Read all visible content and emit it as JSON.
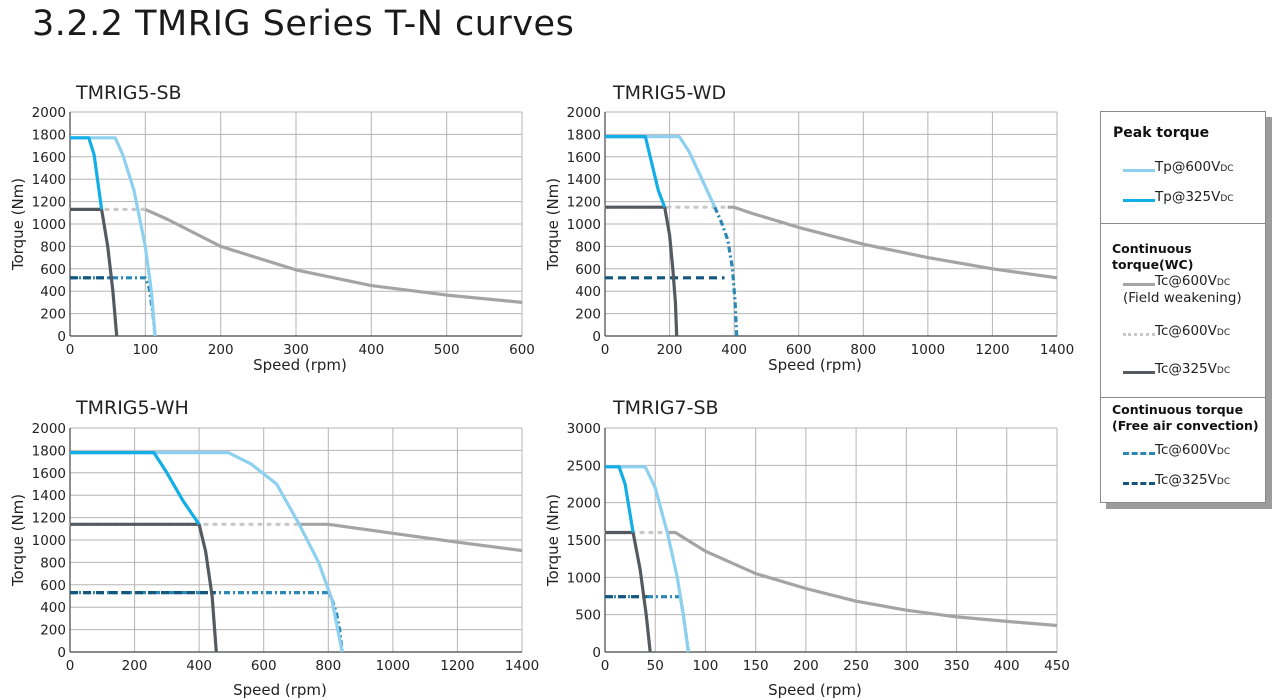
{
  "page": {
    "heading": "3.2.2  TMRIG Series T-N curves"
  },
  "colors": {
    "tp600": "#8dd0f0",
    "tp325": "#12aee6",
    "tc600_fw": "#a4a4a4",
    "tc600_dot": "#c8c8c8",
    "tc325": "#555a60",
    "tc600_air": "#2a88b4",
    "tc325_air": "#14577c"
  },
  "legend": {
    "peak_title": "Peak torque",
    "tp600": "Tp@600V",
    "tp325": "Tp@325V",
    "cont_wc_title": "Continuous torque(WC)",
    "tc600_fw": "Tc@600V",
    "field_weakening": "(Field weakening)",
    "tc600_dot": "Tc@600V",
    "tc325": "Tc@325V",
    "cont_air_title_1": "Continuous torque",
    "cont_air_title_2": "(Free air convection)",
    "tc600_air": "Tc@600V",
    "tc325_air": "Tc@325V",
    "dc": "DC"
  },
  "chart_data": [
    {
      "type": "line",
      "title": "TMRIG5-SB",
      "xlabel": "Speed (rpm)",
      "ylabel": "Torque (Nm)",
      "xlim": [
        0,
        600
      ],
      "ylim": [
        0,
        2000
      ],
      "xticks": [
        0,
        100,
        200,
        300,
        400,
        500,
        600
      ],
      "yticks": [
        0,
        200,
        400,
        600,
        800,
        1000,
        1200,
        1400,
        1600,
        1800,
        2000
      ],
      "xtick_labels": [
        "0",
        "100",
        "200",
        "300",
        "400",
        "500",
        "600"
      ],
      "ytick_labels": [
        "0",
        "200",
        "400",
        "600",
        "800",
        "1000",
        "1200",
        "1400",
        "1600",
        "1800",
        "2000"
      ],
      "grid": true,
      "series": [
        {
          "key": "tc600_fw",
          "style": "solid",
          "points": [
            [
              100,
              1130
            ],
            [
              130,
              1040
            ],
            [
              200,
              800
            ],
            [
              300,
              590
            ],
            [
              400,
              450
            ],
            [
              500,
              365
            ],
            [
              600,
              300
            ]
          ]
        },
        {
          "key": "tc600_dot",
          "style": "dotted",
          "points": [
            [
              0,
              1130
            ],
            [
              100,
              1130
            ]
          ]
        },
        {
          "key": "tc600_air",
          "style": "dashdot",
          "points": [
            [
              0,
              520
            ],
            [
              100,
              520
            ],
            [
              105,
              430
            ],
            [
              110,
              200
            ],
            [
              113,
              0
            ]
          ]
        },
        {
          "key": "tc325_air",
          "style": "dashed",
          "points": [
            [
              0,
              520
            ],
            [
              55,
              520
            ]
          ]
        },
        {
          "key": "tp600",
          "style": "solid",
          "points": [
            [
              0,
              1770
            ],
            [
              60,
              1770
            ],
            [
              70,
              1620
            ],
            [
              85,
              1300
            ],
            [
              100,
              800
            ],
            [
              108,
              400
            ],
            [
              113,
              0
            ]
          ]
        },
        {
          "key": "tc325",
          "style": "solid",
          "points": [
            [
              0,
              1130
            ],
            [
              42,
              1130
            ],
            [
              50,
              800
            ],
            [
              57,
              400
            ],
            [
              62,
              0
            ]
          ]
        },
        {
          "key": "tp325",
          "style": "solid",
          "points": [
            [
              0,
              1770
            ],
            [
              25,
              1770
            ],
            [
              32,
              1620
            ],
            [
              42,
              1130
            ]
          ]
        }
      ]
    },
    {
      "type": "line",
      "title": "TMRIG5-WD",
      "xlabel": "Speed (rpm)",
      "ylabel": "Torque (Nm)",
      "xlim": [
        0,
        1400
      ],
      "ylim": [
        0,
        2000
      ],
      "xticks": [
        0,
        200,
        400,
        600,
        800,
        1000,
        1200,
        1400
      ],
      "yticks": [
        0,
        200,
        400,
        600,
        800,
        1000,
        1200,
        1400,
        1600,
        1800,
        2000
      ],
      "xtick_labels": [
        "0",
        "200",
        "400",
        "600",
        "800",
        "1000",
        "1200",
        "1400"
      ],
      "ytick_labels": [
        "0",
        "200",
        "400",
        "600",
        "800",
        "1000",
        "1200",
        "1400",
        "1600",
        "1800",
        "2000"
      ],
      "grid": true,
      "series": [
        {
          "key": "tc600_fw",
          "style": "solid",
          "points": [
            [
              380,
              1150
            ],
            [
              400,
              1150
            ],
            [
              450,
              1100
            ],
            [
              600,
              970
            ],
            [
              800,
              820
            ],
            [
              1000,
              700
            ],
            [
              1200,
              600
            ],
            [
              1400,
              520
            ]
          ]
        },
        {
          "key": "tc600_dot",
          "style": "dotted",
          "points": [
            [
              0,
              1150
            ],
            [
              380,
              1150
            ]
          ]
        },
        {
          "key": "tc600_air",
          "style": "dashdot",
          "points": [
            [
              340,
              1150
            ],
            [
              360,
              1020
            ],
            [
              380,
              860
            ],
            [
              395,
              600
            ],
            [
              403,
              300
            ],
            [
              408,
              0
            ]
          ]
        },
        {
          "key": "tc325_air",
          "style": "dashed",
          "points": [
            [
              0,
              520
            ],
            [
              370,
              520
            ]
          ]
        },
        {
          "key": "tp600",
          "style": "solid",
          "points": [
            [
              0,
              1780
            ],
            [
              230,
              1780
            ],
            [
              260,
              1650
            ],
            [
              300,
              1400
            ],
            [
              340,
              1150
            ]
          ]
        },
        {
          "key": "tc325",
          "style": "solid",
          "points": [
            [
              0,
              1150
            ],
            [
              185,
              1150
            ],
            [
              200,
              900
            ],
            [
              210,
              600
            ],
            [
              218,
              300
            ],
            [
              222,
              0
            ]
          ]
        },
        {
          "key": "tp325",
          "style": "solid",
          "points": [
            [
              0,
              1780
            ],
            [
              125,
              1780
            ],
            [
              140,
              1600
            ],
            [
              165,
              1300
            ],
            [
              185,
              1150
            ]
          ]
        }
      ]
    },
    {
      "type": "line",
      "title": "TMRIG5-WH",
      "xlabel": "Speed (rpm)",
      "ylabel": "Torque (Nm)",
      "xlim": [
        0,
        1400
      ],
      "ylim": [
        0,
        2000
      ],
      "xticks": [
        0,
        200,
        400,
        600,
        800,
        1000,
        1200,
        1400
      ],
      "yticks": [
        0,
        200,
        400,
        600,
        800,
        1000,
        1200,
        1400,
        1600,
        1800,
        2000
      ],
      "xtick_labels": [
        "0",
        "200",
        "400",
        "600",
        "800",
        "1000",
        "1200",
        "1400"
      ],
      "ytick_labels": [
        "0",
        "200",
        "400",
        "600",
        "800",
        "1000",
        "1200",
        "1400",
        "1600",
        "1800",
        "2000"
      ],
      "grid": true,
      "series": [
        {
          "key": "tc600_fw",
          "style": "solid",
          "points": [
            [
              710,
              1140
            ],
            [
              800,
              1140
            ],
            [
              1000,
              1060
            ],
            [
              1200,
              980
            ],
            [
              1400,
              905
            ]
          ]
        },
        {
          "key": "tc600_dot",
          "style": "dotted",
          "points": [
            [
              0,
              1140
            ],
            [
              710,
              1140
            ]
          ]
        },
        {
          "key": "tc600_air",
          "style": "dashdot",
          "points": [
            [
              0,
              530
            ],
            [
              800,
              530
            ],
            [
              810,
              480
            ],
            [
              825,
              350
            ],
            [
              835,
              200
            ],
            [
              843,
              0
            ]
          ]
        },
        {
          "key": "tc325_air",
          "style": "dashed",
          "points": [
            [
              0,
              530
            ],
            [
              450,
              530
            ]
          ]
        },
        {
          "key": "tp600",
          "style": "solid",
          "points": [
            [
              0,
              1780
            ],
            [
              490,
              1780
            ],
            [
              560,
              1680
            ],
            [
              640,
              1500
            ],
            [
              710,
              1140
            ],
            [
              770,
              800
            ],
            [
              810,
              480
            ],
            [
              843,
              0
            ]
          ]
        },
        {
          "key": "tc325",
          "style": "solid",
          "points": [
            [
              0,
              1140
            ],
            [
              400,
              1140
            ],
            [
              420,
              900
            ],
            [
              440,
              500
            ],
            [
              453,
              0
            ]
          ]
        },
        {
          "key": "tp325",
          "style": "solid",
          "points": [
            [
              0,
              1780
            ],
            [
              260,
              1780
            ],
            [
              300,
              1600
            ],
            [
              350,
              1350
            ],
            [
              400,
              1140
            ]
          ]
        }
      ]
    },
    {
      "type": "line",
      "title": "TMRIG7-SB",
      "xlabel": "Speed (rpm)",
      "ylabel": "Torque (Nm)",
      "xlim": [
        0,
        450
      ],
      "ylim": [
        0,
        3000
      ],
      "xticks": [
        0,
        50,
        100,
        150,
        200,
        250,
        300,
        350,
        400,
        450
      ],
      "yticks": [
        0,
        500,
        1000,
        1500,
        2000,
        2500,
        3000
      ],
      "xtick_labels": [
        "0",
        "50",
        "100",
        "150",
        "200",
        "250",
        "300",
        "350",
        "400",
        "450"
      ],
      "ytick_labels": [
        "0",
        "500",
        "1000",
        "1500",
        "2000",
        "2500",
        "3000"
      ],
      "grid": true,
      "series": [
        {
          "key": "tc600_fw",
          "style": "solid",
          "points": [
            [
              62,
              1600
            ],
            [
              70,
              1600
            ],
            [
              100,
              1350
            ],
            [
              150,
              1050
            ],
            [
              200,
              850
            ],
            [
              250,
              680
            ],
            [
              300,
              560
            ],
            [
              350,
              470
            ],
            [
              400,
              410
            ],
            [
              450,
              355
            ]
          ]
        },
        {
          "key": "tc600_dot",
          "style": "dotted",
          "points": [
            [
              0,
              1600
            ],
            [
              62,
              1600
            ]
          ]
        },
        {
          "key": "tc600_air",
          "style": "dashdot",
          "points": [
            [
              0,
              740
            ],
            [
              75,
              740
            ],
            [
              78,
              500
            ],
            [
              81,
              200
            ],
            [
              83,
              0
            ]
          ]
        },
        {
          "key": "tc325_air",
          "style": "dashed",
          "points": [
            [
              0,
              740
            ],
            [
              42,
              740
            ]
          ]
        },
        {
          "key": "tp600",
          "style": "solid",
          "points": [
            [
              0,
              2480
            ],
            [
              40,
              2480
            ],
            [
              50,
              2200
            ],
            [
              62,
              1600
            ],
            [
              72,
              1000
            ],
            [
              78,
              500
            ],
            [
              83,
              0
            ]
          ]
        },
        {
          "key": "tc325",
          "style": "solid",
          "points": [
            [
              0,
              1600
            ],
            [
              28,
              1600
            ],
            [
              35,
              1100
            ],
            [
              41,
              500
            ],
            [
              45,
              0
            ]
          ]
        },
        {
          "key": "tp325",
          "style": "solid",
          "points": [
            [
              0,
              2480
            ],
            [
              14,
              2480
            ],
            [
              20,
              2250
            ],
            [
              28,
              1600
            ]
          ]
        }
      ]
    }
  ]
}
